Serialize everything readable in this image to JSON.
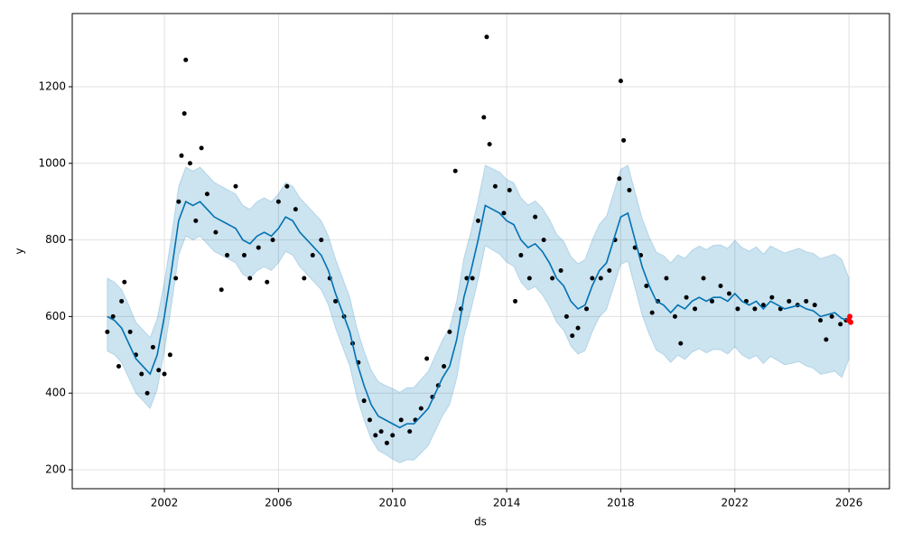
{
  "chart_data": {
    "type": "line",
    "xlabel": "ds",
    "ylabel": "y",
    "grid": true,
    "xlim": [
      1998.77,
      2027.42
    ],
    "ylim": [
      150.5,
      1391
    ],
    "xticks": [
      2002,
      2006,
      2010,
      2014,
      2018,
      2022,
      2026
    ],
    "yticks": [
      200,
      400,
      600,
      800,
      1000,
      1200
    ],
    "forecast": {
      "color": "#0072b2",
      "band_color": "#0072b2",
      "x": [
        2000.0,
        2000.25,
        2000.5,
        2000.75,
        2001.0,
        2001.25,
        2001.5,
        2001.75,
        2002.0,
        2002.25,
        2002.5,
        2002.75,
        2003.0,
        2003.25,
        2003.5,
        2003.75,
        2004.0,
        2004.25,
        2004.5,
        2004.75,
        2005.0,
        2005.25,
        2005.5,
        2005.75,
        2006.0,
        2006.25,
        2006.5,
        2006.75,
        2007.0,
        2007.25,
        2007.5,
        2007.75,
        2008.0,
        2008.25,
        2008.5,
        2008.75,
        2009.0,
        2009.25,
        2009.5,
        2009.75,
        2010.0,
        2010.25,
        2010.5,
        2010.75,
        2011.0,
        2011.25,
        2011.5,
        2011.75,
        2012.0,
        2012.25,
        2012.5,
        2012.75,
        2013.0,
        2013.25,
        2013.5,
        2013.75,
        2014.0,
        2014.25,
        2014.5,
        2014.75,
        2015.0,
        2015.25,
        2015.5,
        2015.75,
        2016.0,
        2016.25,
        2016.5,
        2016.75,
        2017.0,
        2017.25,
        2017.5,
        2017.75,
        2018.0,
        2018.25,
        2018.5,
        2018.75,
        2019.0,
        2019.25,
        2019.5,
        2019.75,
        2020.0,
        2020.25,
        2020.5,
        2020.75,
        2021.0,
        2021.25,
        2021.5,
        2021.75,
        2022.0,
        2022.25,
        2022.5,
        2022.75,
        2023.0,
        2023.25,
        2023.5,
        2023.75,
        2024.0,
        2024.25,
        2024.5,
        2024.75,
        2025.0,
        2025.25,
        2025.5,
        2025.75,
        2026.0
      ],
      "values": [
        600,
        590,
        570,
        530,
        490,
        470,
        450,
        500,
        600,
        720,
        850,
        900,
        890,
        900,
        880,
        860,
        850,
        840,
        830,
        800,
        790,
        810,
        820,
        810,
        830,
        860,
        850,
        820,
        800,
        780,
        760,
        720,
        660,
        610,
        560,
        480,
        420,
        370,
        340,
        330,
        320,
        310,
        320,
        320,
        340,
        360,
        400,
        440,
        470,
        540,
        650,
        720,
        800,
        890,
        880,
        870,
        850,
        840,
        800,
        780,
        790,
        770,
        740,
        700,
        680,
        640,
        620,
        630,
        680,
        720,
        740,
        800,
        860,
        870,
        800,
        730,
        680,
        640,
        630,
        610,
        630,
        620,
        640,
        650,
        640,
        650,
        650,
        640,
        660,
        640,
        630,
        640,
        620,
        640,
        630,
        620,
        625,
        630,
        620,
        615,
        600,
        605,
        610,
        595,
        590
      ],
      "lower": [
        510,
        500,
        480,
        440,
        400,
        380,
        360,
        410,
        510,
        630,
        760,
        810,
        800,
        810,
        790,
        770,
        760,
        750,
        740,
        710,
        700,
        720,
        730,
        720,
        740,
        770,
        760,
        730,
        710,
        690,
        670,
        630,
        570,
        520,
        470,
        390,
        330,
        280,
        250,
        240,
        228,
        218,
        226,
        225,
        244,
        263,
        302,
        341,
        370,
        439,
        548,
        617,
        696,
        785,
        774,
        763,
        742,
        731,
        690,
        669,
        678,
        657,
        626,
        585,
        564,
        523,
        502,
        511,
        560,
        599,
        618,
        677,
        736,
        745,
        675,
        604,
        553,
        512,
        501,
        480,
        499,
        488,
        507,
        516,
        505,
        514,
        513,
        502,
        521,
        500,
        489,
        498,
        477,
        496,
        485,
        474,
        478,
        482,
        471,
        465,
        449,
        453,
        457,
        441,
        489
      ],
      "upper": [
        700,
        690,
        670,
        630,
        585,
        565,
        545,
        595,
        690,
        810,
        940,
        990,
        980,
        990,
        970,
        950,
        940,
        930,
        920,
        890,
        880,
        900,
        910,
        900,
        920,
        950,
        940,
        910,
        890,
        870,
        850,
        810,
        750,
        700,
        650,
        570,
        510,
        460,
        430,
        420,
        412,
        402,
        414,
        415,
        436,
        457,
        498,
        539,
        570,
        641,
        752,
        823,
        904,
        995,
        986,
        977,
        958,
        949,
        910,
        891,
        902,
        883,
        854,
        815,
        796,
        757,
        738,
        749,
        800,
        841,
        862,
        923,
        984,
        995,
        925,
        856,
        807,
        768,
        759,
        740,
        761,
        752,
        773,
        784,
        775,
        786,
        787,
        778,
        799,
        780,
        771,
        782,
        763,
        784,
        775,
        766,
        772,
        778,
        769,
        765,
        751,
        757,
        763,
        749,
        700
      ]
    },
    "observed": {
      "color": "#000000",
      "x": [
        2000.0,
        2000.2,
        2000.4,
        2000.5,
        2000.6,
        2000.8,
        2001.0,
        2001.2,
        2001.4,
        2001.6,
        2001.8,
        2002.0,
        2002.2,
        2002.4,
        2002.5,
        2002.6,
        2002.7,
        2002.75,
        2002.9,
        2003.1,
        2003.3,
        2003.5,
        2003.8,
        2004.0,
        2004.2,
        2004.5,
        2004.8,
        2005.0,
        2005.3,
        2005.6,
        2005.8,
        2006.0,
        2006.3,
        2006.6,
        2006.9,
        2007.2,
        2007.5,
        2007.8,
        2008.0,
        2008.3,
        2008.6,
        2008.8,
        2009.0,
        2009.2,
        2009.4,
        2009.6,
        2009.8,
        2010.0,
        2010.3,
        2010.6,
        2010.8,
        2011.0,
        2011.2,
        2011.4,
        2011.6,
        2011.8,
        2012.0,
        2012.2,
        2012.4,
        2012.6,
        2012.8,
        2013.0,
        2013.2,
        2013.3,
        2013.4,
        2013.6,
        2013.9,
        2014.1,
        2014.3,
        2014.5,
        2014.8,
        2015.0,
        2015.3,
        2015.6,
        2015.9,
        2016.1,
        2016.3,
        2016.5,
        2016.8,
        2017.0,
        2017.3,
        2017.6,
        2017.8,
        2017.95,
        2018.0,
        2018.1,
        2018.3,
        2018.5,
        2018.7,
        2018.9,
        2019.1,
        2019.3,
        2019.6,
        2019.9,
        2020.1,
        2020.3,
        2020.6,
        2020.9,
        2021.2,
        2021.5,
        2021.8,
        2022.1,
        2022.4,
        2022.7,
        2023.0,
        2023.3,
        2023.6,
        2023.9,
        2024.2,
        2024.5,
        2024.8,
        2025.0,
        2025.2,
        2025.4,
        2025.7,
        2025.9
      ],
      "values": [
        560,
        600,
        470,
        640,
        690,
        560,
        500,
        450,
        400,
        520,
        460,
        450,
        500,
        700,
        900,
        1020,
        1130,
        1270,
        1000,
        850,
        1040,
        920,
        820,
        670,
        760,
        940,
        760,
        700,
        780,
        690,
        800,
        900,
        940,
        880,
        700,
        760,
        800,
        700,
        640,
        600,
        530,
        480,
        380,
        330,
        290,
        300,
        270,
        290,
        330,
        300,
        330,
        360,
        490,
        390,
        420,
        470,
        560,
        980,
        620,
        700,
        700,
        850,
        1120,
        1330,
        1050,
        940,
        870,
        930,
        640,
        760,
        700,
        860,
        800,
        700,
        720,
        600,
        550,
        570,
        620,
        700,
        700,
        720,
        800,
        960,
        1215,
        1060,
        930,
        780,
        760,
        680,
        610,
        640,
        700,
        600,
        530,
        650,
        620,
        700,
        640,
        680,
        660,
        620,
        640,
        620,
        630,
        650,
        620,
        640,
        630,
        640,
        630,
        590,
        540,
        600,
        580,
        590
      ]
    },
    "future": {
      "color": "#ff0000",
      "x": [
        2026.0,
        2026.03,
        2026.06
      ],
      "values": [
        590,
        600,
        585
      ]
    }
  }
}
